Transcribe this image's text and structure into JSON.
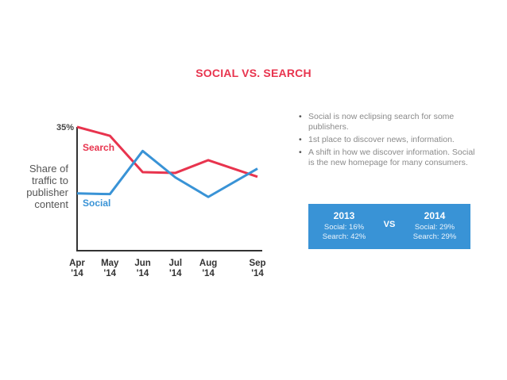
{
  "title": "SOCIAL VS. SEARCH",
  "ylabel_lines": [
    "Share of",
    "traffic to",
    "publisher",
    "content"
  ],
  "bullets": [
    "Social is now eclipsing search for some publishers.",
    "1st place to discover news, information.",
    "A shift in how we discover information. Social is the new homepage for many consumers."
  ],
  "comparison": {
    "left": {
      "year": "2013",
      "social": "Social: 16%",
      "search": "Search: 42%"
    },
    "vs": "VS",
    "right": {
      "year": "2014",
      "social": "Social: 29%",
      "search": "Search: 29%"
    }
  },
  "chart_data": {
    "type": "line",
    "categories": [
      {
        "month": "Apr",
        "year": "'14"
      },
      {
        "month": "May",
        "year": "'14"
      },
      {
        "month": "Jun",
        "year": "'14"
      },
      {
        "month": "Jul",
        "year": "'14"
      },
      {
        "month": "Aug",
        "year": "'14"
      },
      {
        "month": "Sep",
        "year": "'14"
      }
    ],
    "x": [
      0,
      1,
      2,
      3,
      4,
      5.5
    ],
    "ylim": [
      0,
      35
    ],
    "ytick_label": "35%",
    "ytick_value": 35,
    "series": [
      {
        "name": "Search",
        "color": "#e8344e",
        "values": [
          35,
          32.5,
          22.2,
          22,
          25.6,
          20.9
        ]
      },
      {
        "name": "Social",
        "color": "#3993d6",
        "values": [
          16.2,
          16,
          28.2,
          20.7,
          15.2,
          23.2
        ]
      }
    ],
    "grid": false,
    "legend": "inline labels"
  },
  "colors": {
    "search": "#e8344e",
    "social": "#3993d6"
  }
}
